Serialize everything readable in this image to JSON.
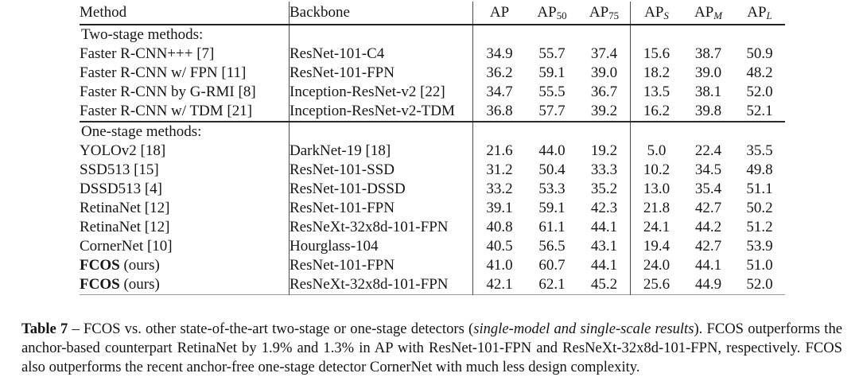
{
  "table": {
    "columns": [
      {
        "key": "method",
        "label": "Method",
        "sub": ""
      },
      {
        "key": "backbone",
        "label": "Backbone",
        "sub": ""
      },
      {
        "key": "ap",
        "label": "AP",
        "sub": ""
      },
      {
        "key": "ap50",
        "label": "AP",
        "sub": "50"
      },
      {
        "key": "ap75",
        "label": "AP",
        "sub": "75"
      },
      {
        "key": "aps",
        "label": "AP",
        "sub": "S",
        "italic_sub": true
      },
      {
        "key": "apm",
        "label": "AP",
        "sub": "M",
        "italic_sub": true
      },
      {
        "key": "apl",
        "label": "AP",
        "sub": "L",
        "italic_sub": true
      }
    ],
    "rows": [
      {
        "type": "section",
        "label": "Two-stage methods:"
      },
      {
        "type": "data",
        "method_bold": "",
        "method": "Faster R-CNN+++ [7]",
        "backbone": "ResNet-101-C4",
        "values": [
          "34.9",
          "55.7",
          "37.4",
          "15.6",
          "38.7",
          "50.9"
        ],
        "bold": [
          0,
          0,
          0,
          0,
          0,
          0
        ]
      },
      {
        "type": "data",
        "method_bold": "",
        "method": "Faster R-CNN w/ FPN [11]",
        "backbone": "ResNet-101-FPN",
        "values": [
          "36.2",
          "59.1",
          "39.0",
          "18.2",
          "39.0",
          "48.2"
        ],
        "bold": [
          0,
          0,
          0,
          0,
          0,
          0
        ]
      },
      {
        "type": "data",
        "method_bold": "",
        "method": "Faster R-CNN by G-RMI [8]",
        "backbone": "Inception-ResNet-v2 [22]",
        "values": [
          "34.7",
          "55.5",
          "36.7",
          "13.5",
          "38.1",
          "52.0"
        ],
        "bold": [
          0,
          0,
          0,
          0,
          0,
          0
        ]
      },
      {
        "type": "data",
        "method_bold": "",
        "method": "Faster R-CNN w/ TDM [21]",
        "backbone": "Inception-ResNet-v2-TDM",
        "values": [
          "36.8",
          "57.7",
          "39.2",
          "16.2",
          "39.8",
          "52.1"
        ],
        "bold": [
          0,
          0,
          0,
          0,
          0,
          0
        ]
      },
      {
        "type": "section",
        "label": "One-stage methods:"
      },
      {
        "type": "data",
        "method_bold": "",
        "method": "YOLOv2 [18]",
        "backbone": "DarkNet-19 [18]",
        "values": [
          "21.6",
          "44.0",
          "19.2",
          "5.0",
          "22.4",
          "35.5"
        ],
        "bold": [
          0,
          0,
          0,
          0,
          0,
          0
        ]
      },
      {
        "type": "data",
        "method_bold": "",
        "method": "SSD513 [15]",
        "backbone": "ResNet-101-SSD",
        "values": [
          "31.2",
          "50.4",
          "33.3",
          "10.2",
          "34.5",
          "49.8"
        ],
        "bold": [
          0,
          0,
          0,
          0,
          0,
          0
        ]
      },
      {
        "type": "data",
        "method_bold": "",
        "method": "DSSD513 [4]",
        "backbone": "ResNet-101-DSSD",
        "values": [
          "33.2",
          "53.3",
          "35.2",
          "13.0",
          "35.4",
          "51.1"
        ],
        "bold": [
          0,
          0,
          0,
          0,
          0,
          0
        ]
      },
      {
        "type": "data",
        "method_bold": "",
        "method": "RetinaNet [12]",
        "backbone": "ResNet-101-FPN",
        "values": [
          "39.1",
          "59.1",
          "42.3",
          "21.8",
          "42.7",
          "50.2"
        ],
        "bold": [
          0,
          0,
          0,
          0,
          0,
          0
        ]
      },
      {
        "type": "data",
        "method_bold": "",
        "method": "RetinaNet [12]",
        "backbone": "ResNeXt-32x8d-101-FPN",
        "values": [
          "40.8",
          "61.1",
          "44.1",
          "24.1",
          "44.2",
          "51.2"
        ],
        "bold": [
          0,
          0,
          0,
          0,
          0,
          0
        ]
      },
      {
        "type": "data",
        "method_bold": "",
        "method": "CornerNet [10]",
        "backbone": "Hourglass-104",
        "values": [
          "40.5",
          "56.5",
          "43.1",
          "19.4",
          "42.7",
          "53.9"
        ],
        "bold": [
          0,
          0,
          0,
          0,
          0,
          1
        ]
      },
      {
        "type": "data",
        "method_bold": "FCOS",
        "method": " (ours)",
        "backbone": "ResNet-101-FPN",
        "values": [
          "41.0",
          "60.7",
          "44.1",
          "24.0",
          "44.1",
          "51.0"
        ],
        "bold": [
          0,
          0,
          0,
          0,
          0,
          0
        ]
      },
      {
        "type": "data",
        "method_bold": "FCOS",
        "method": " (ours)",
        "backbone": "ResNeXt-32x8d-101-FPN",
        "values": [
          "42.1",
          "62.1",
          "45.2",
          "25.6",
          "44.9",
          "52.0"
        ],
        "bold": [
          1,
          1,
          1,
          1,
          1,
          0
        ]
      }
    ]
  },
  "caption": {
    "label": "Table 7",
    "sep": " – ",
    "before_italic": "FCOS vs. other state-of-the-art two-stage or one-stage detectors (",
    "italic": "single-model and single-scale results",
    "after_italic": "). FCOS outperforms the anchor-based counterpart RetinaNet by 1.9% and 1.3% in AP with ResNet-101-FPN and ResNeXt-32x8d-101-FPN, respectively. FCOS also outperforms the recent anchor-free one-stage detector CornerNet with much less design complexity."
  }
}
